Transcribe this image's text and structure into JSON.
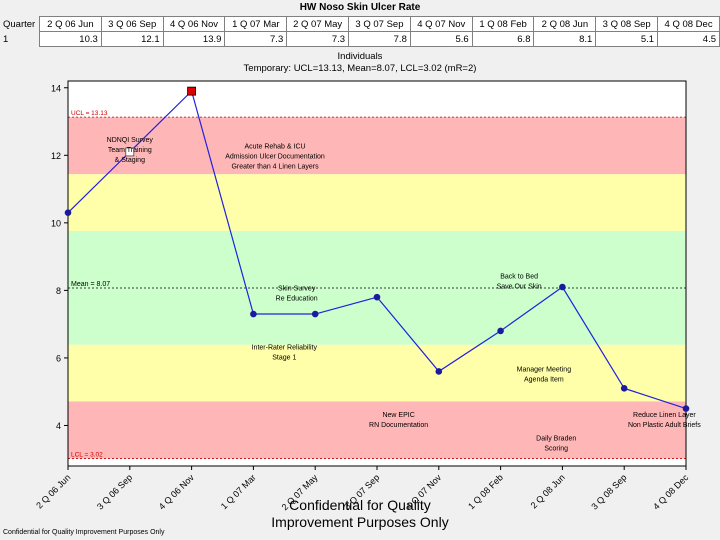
{
  "chart_data": {
    "type": "line",
    "title": "HW Noso Skin Ulcer Rate",
    "table_row_header": "Quarter",
    "table_row_label": "1",
    "categories": [
      "2 Q 06 Jun",
      "3 Q 06 Sep",
      "4 Q 06 Nov",
      "1 Q 07 Mar",
      "2 Q 07 May",
      "3 Q 07 Sep",
      "4 Q 07 Nov",
      "1 Q 08 Feb",
      "2 Q 08 Jun",
      "3 Q 08 Sep",
      "4 Q 08 Dec"
    ],
    "values": [
      10.3,
      12.1,
      13.9,
      7.3,
      7.3,
      7.8,
      5.6,
      6.8,
      8.1,
      5.1,
      4.5
    ],
    "value_labels": [
      "10.3",
      "12.1",
      "13.9",
      "7.3",
      "7.3",
      "7.8",
      "5.6",
      "6.8",
      "8.1",
      "5.1",
      "4.5"
    ],
    "chart_subtitle": "Individuals",
    "chart_subtitle2": "Temporary: UCL=13.13, Mean=8.07, LCL=3.02 (mR=2)",
    "ucl": 13.13,
    "mean": 8.07,
    "lcl": 3.02,
    "ucl_label": "UCL = 13.13",
    "mean_label": "Mean = 8.07",
    "lcl_label": "LCL = 3.02",
    "ylim": [
      2.8,
      14.2
    ],
    "yticks": [
      4,
      6,
      8,
      10,
      12,
      14
    ],
    "bands": [
      {
        "from": 11.44,
        "to": 13.13,
        "color": "#ffb6b6"
      },
      {
        "from": 9.76,
        "to": 11.44,
        "color": "#ffffaa"
      },
      {
        "from": 6.39,
        "to": 9.76,
        "color": "#ccffcc"
      },
      {
        "from": 4.71,
        "to": 6.39,
        "color": "#ffffaa"
      },
      {
        "from": 3.02,
        "to": 4.71,
        "color": "#ffb6b6"
      }
    ],
    "highlight_points": [
      {
        "index": 1,
        "style": "open-square"
      },
      {
        "index": 2,
        "style": "red-square"
      }
    ],
    "line_color": "#2222dd",
    "annotations": [
      {
        "lines": [
          "NDNQI Survey",
          "Team Training",
          "& Staging"
        ],
        "x": 1,
        "y": 12.4
      },
      {
        "lines": [
          "Acute Rehab & ICU",
          "Admission Ulcer Documentation",
          "Greater than 4 Linen Layers"
        ],
        "x": 3.35,
        "y": 12.2
      },
      {
        "lines": [
          "Skin Survey",
          "Re Education"
        ],
        "x": 3.7,
        "y": 8.0
      },
      {
        "lines": [
          "Inter-Rater Reliability",
          "Stage 1"
        ],
        "x": 3.5,
        "y": 6.25
      },
      {
        "lines": [
          "Back to Bed",
          "Save Our Skin"
        ],
        "x": 7.3,
        "y": 8.35
      },
      {
        "lines": [
          "Manager Meeting",
          "Agenda Item"
        ],
        "x": 7.7,
        "y": 5.6
      },
      {
        "lines": [
          "New EPIC",
          "RN Documentation"
        ],
        "x": 5.35,
        "y": 4.25
      },
      {
        "lines": [
          "Reduce Linen Layer",
          "Non Plastic Adult Briefs"
        ],
        "x": 9.65,
        "y": 4.25
      },
      {
        "lines": [
          "Daily Braden",
          "Scoring"
        ],
        "x": 7.9,
        "y": 3.55
      }
    ]
  },
  "watermark": "Confidential for Quality Improvement Purposes Only",
  "footer": "Confidential for Quality Improvement Purposes Only"
}
